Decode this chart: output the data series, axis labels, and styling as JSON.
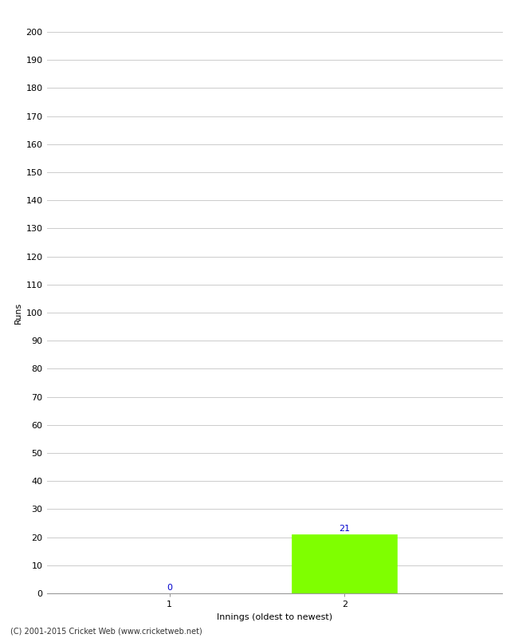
{
  "categories": [
    1,
    2
  ],
  "values": [
    0,
    21
  ],
  "bar_color": "#7fff00",
  "ylabel": "Runs",
  "xlabel": "Innings (oldest to newest)",
  "ylim": [
    0,
    200
  ],
  "yticks": [
    0,
    10,
    20,
    30,
    40,
    50,
    60,
    70,
    80,
    90,
    100,
    110,
    120,
    130,
    140,
    150,
    160,
    170,
    180,
    190,
    200
  ],
  "xticks": [
    1,
    2
  ],
  "footnote": "(C) 2001-2015 Cricket Web (www.cricketweb.net)",
  "bar_width": 0.6,
  "value_color": "#0000cd",
  "grid_color": "#cccccc",
  "background_color": "#ffffff",
  "label_fontsize": 8,
  "tick_fontsize": 8,
  "footnote_fontsize": 7,
  "spine_color": "#999999"
}
